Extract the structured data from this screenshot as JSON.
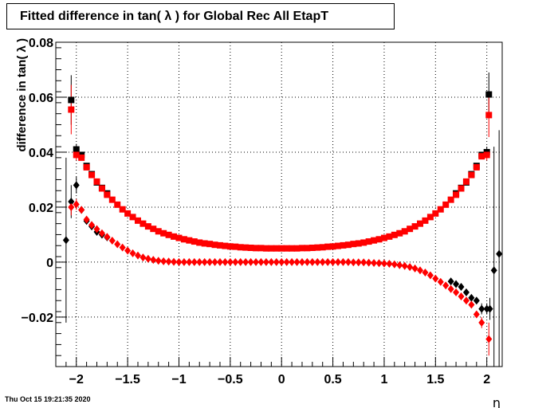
{
  "chart_data": {
    "type": "scatter",
    "title": "Fitted difference in tan( λ ) for Global Rec All EtapT",
    "xlabel": "η",
    "ylabel": "difference in tan( λ )",
    "xlim": [
      -2.2,
      2.15
    ],
    "ylim": [
      -0.038,
      0.08
    ],
    "xticks": [
      -2,
      -1.5,
      -1,
      -0.5,
      0,
      0.5,
      1,
      1.5,
      2
    ],
    "xtick_labels": [
      "−2",
      "−1.5",
      "−1",
      "−0.5",
      "0",
      "0.5",
      "1",
      "1.5",
      "2"
    ],
    "yticks": [
      -0.02,
      0,
      0.02,
      0.04,
      0.06,
      0.08
    ],
    "ytick_labels": [
      "−0.02",
      "0",
      "0.02",
      "0.04",
      "0.06",
      "0.08"
    ],
    "grid": true,
    "series": [
      {
        "marker": "square",
        "color": "#000000",
        "points": [
          [
            -2.05,
            0.059,
            0.009
          ],
          [
            -2.0,
            0.041,
            0.002
          ],
          [
            -1.95,
            0.039,
            0.001
          ],
          [
            -1.9,
            0.035,
            0.001
          ],
          [
            -1.85,
            0.032,
            0.0008
          ],
          [
            -1.8,
            0.029,
            0.0007
          ],
          [
            -1.75,
            0.027,
            0.0006
          ],
          [
            -1.7,
            0.025,
            0.0005
          ],
          [
            1.7,
            0.025,
            0.0005
          ],
          [
            1.75,
            0.027,
            0.0006
          ],
          [
            1.8,
            0.029,
            0.0007
          ],
          [
            1.85,
            0.032,
            0.0008
          ],
          [
            1.9,
            0.035,
            0.001
          ],
          [
            1.95,
            0.039,
            0.001
          ],
          [
            2.0,
            0.04,
            0.002
          ],
          [
            2.02,
            0.061,
            0.008
          ]
        ]
      },
      {
        "marker": "diamond",
        "color": "#000000",
        "points": [
          [
            -2.1,
            0.008,
            0.03
          ],
          [
            -2.05,
            0.022,
            0.006
          ],
          [
            -2.0,
            0.028,
            0.003
          ],
          [
            -1.95,
            0.019,
            0.001
          ],
          [
            -1.9,
            0.015,
            0.001
          ],
          [
            -1.85,
            0.013,
            0.0008
          ],
          [
            -1.8,
            0.011,
            0.0007
          ],
          [
            -1.75,
            0.01,
            0.0006
          ],
          [
            -1.7,
            0.009,
            0.0005
          ],
          [
            1.65,
            -0.007,
            0.0005
          ],
          [
            1.7,
            -0.008,
            0.0006
          ],
          [
            1.75,
            -0.009,
            0.0007
          ],
          [
            1.8,
            -0.011,
            0.0008
          ],
          [
            1.85,
            -0.013,
            0.0009
          ],
          [
            1.9,
            -0.014,
            0.001
          ],
          [
            1.95,
            -0.017,
            0.002
          ],
          [
            2.0,
            -0.017,
            0.002
          ],
          [
            2.03,
            -0.017,
            0.004
          ],
          [
            2.07,
            -0.003,
            0.045
          ],
          [
            2.12,
            0.003,
            0.045
          ]
        ]
      },
      {
        "marker": "square",
        "color": "#ff0000",
        "points": [
          [
            -2.05,
            0.0555,
            0.009
          ],
          [
            -2.0,
            0.039,
            0.002
          ],
          [
            -1.95,
            0.038,
            0.001
          ],
          [
            -1.9,
            0.0345,
            0.001
          ],
          [
            -1.85,
            0.0317,
            0.0008
          ],
          [
            -1.8,
            0.0293,
            0.0007
          ],
          [
            -1.75,
            0.0268,
            0.0006
          ],
          [
            -1.7,
            0.0245,
            0.0005
          ],
          [
            -1.65,
            0.0227,
            0.0004
          ],
          [
            -1.6,
            0.0209,
            0.0004
          ],
          [
            -1.55,
            0.0192,
            0.0003
          ],
          [
            -1.5,
            0.0177,
            0.0003
          ],
          [
            -1.45,
            0.0164,
            0.0003
          ],
          [
            -1.4,
            0.0151,
            0.0003
          ],
          [
            -1.35,
            0.014,
            0.0003
          ],
          [
            -1.3,
            0.013,
            0.0002
          ],
          [
            -1.25,
            0.0121,
            0.0002
          ],
          [
            -1.2,
            0.0112,
            0.0002
          ],
          [
            -1.15,
            0.0105,
            0.0002
          ],
          [
            -1.1,
            0.0099,
            0.0002
          ],
          [
            -1.05,
            0.0093,
            0.0002
          ],
          [
            -1.0,
            0.0088,
            0.0002
          ],
          [
            -0.95,
            0.0083,
            0.0002
          ],
          [
            -0.9,
            0.0079,
            0.0002
          ],
          [
            -0.85,
            0.0075,
            0.0002
          ],
          [
            -0.8,
            0.0071,
            0.0002
          ],
          [
            -0.75,
            0.0068,
            0.0002
          ],
          [
            -0.7,
            0.0066,
            0.0002
          ],
          [
            -0.65,
            0.0063,
            0.0002
          ],
          [
            -0.6,
            0.0061,
            0.0002
          ],
          [
            -0.55,
            0.0059,
            0.0002
          ],
          [
            -0.5,
            0.0057,
            0.0002
          ],
          [
            -0.45,
            0.0056,
            0.0002
          ],
          [
            -0.4,
            0.0054,
            0.0002
          ],
          [
            -0.35,
            0.0053,
            0.0002
          ],
          [
            -0.3,
            0.0052,
            0.0002
          ],
          [
            -0.25,
            0.0051,
            0.0002
          ],
          [
            -0.2,
            0.0051,
            0.0002
          ],
          [
            -0.15,
            0.005,
            0.0002
          ],
          [
            -0.1,
            0.005,
            0.0002
          ],
          [
            -0.05,
            0.005,
            0.0002
          ],
          [
            0.0,
            0.005,
            0.0002
          ],
          [
            0.05,
            0.005,
            0.0002
          ],
          [
            0.1,
            0.005,
            0.0002
          ],
          [
            0.15,
            0.005,
            0.0002
          ],
          [
            0.2,
            0.0051,
            0.0002
          ],
          [
            0.25,
            0.0051,
            0.0002
          ],
          [
            0.3,
            0.0052,
            0.0002
          ],
          [
            0.35,
            0.0053,
            0.0002
          ],
          [
            0.4,
            0.0054,
            0.0002
          ],
          [
            0.45,
            0.0056,
            0.0002
          ],
          [
            0.5,
            0.0057,
            0.0002
          ],
          [
            0.55,
            0.0059,
            0.0002
          ],
          [
            0.6,
            0.0061,
            0.0002
          ],
          [
            0.65,
            0.0063,
            0.0002
          ],
          [
            0.7,
            0.0066,
            0.0002
          ],
          [
            0.75,
            0.0068,
            0.0002
          ],
          [
            0.8,
            0.0071,
            0.0002
          ],
          [
            0.85,
            0.0075,
            0.0002
          ],
          [
            0.9,
            0.0079,
            0.0002
          ],
          [
            0.95,
            0.0083,
            0.0002
          ],
          [
            1.0,
            0.0088,
            0.0002
          ],
          [
            1.05,
            0.0093,
            0.0002
          ],
          [
            1.1,
            0.0099,
            0.0002
          ],
          [
            1.15,
            0.0105,
            0.0002
          ],
          [
            1.2,
            0.0112,
            0.0002
          ],
          [
            1.25,
            0.0121,
            0.0002
          ],
          [
            1.3,
            0.013,
            0.0002
          ],
          [
            1.35,
            0.014,
            0.0003
          ],
          [
            1.4,
            0.0151,
            0.0003
          ],
          [
            1.45,
            0.0164,
            0.0003
          ],
          [
            1.5,
            0.0177,
            0.0003
          ],
          [
            1.55,
            0.0192,
            0.0003
          ],
          [
            1.6,
            0.0209,
            0.0004
          ],
          [
            1.65,
            0.0227,
            0.0004
          ],
          [
            1.7,
            0.0245,
            0.0005
          ],
          [
            1.75,
            0.0268,
            0.0006
          ],
          [
            1.8,
            0.0293,
            0.0007
          ],
          [
            1.85,
            0.0317,
            0.0008
          ],
          [
            1.9,
            0.0345,
            0.001
          ],
          [
            1.95,
            0.0385,
            0.001
          ],
          [
            2.0,
            0.039,
            0.002
          ],
          [
            2.02,
            0.0535,
            0.008
          ]
        ]
      },
      {
        "marker": "diamond",
        "color": "#ff0000",
        "points": [
          [
            -2.05,
            0.02,
            0.003
          ],
          [
            -2.0,
            0.021,
            0.002
          ],
          [
            -1.95,
            0.019,
            0.001
          ],
          [
            -1.9,
            0.0155,
            0.001
          ],
          [
            -1.85,
            0.0135,
            0.0008
          ],
          [
            -1.8,
            0.012,
            0.0007
          ],
          [
            -1.75,
            0.0105,
            0.0006
          ],
          [
            -1.7,
            0.0092,
            0.0005
          ],
          [
            -1.65,
            0.0078,
            0.0004
          ],
          [
            -1.6,
            0.0065,
            0.0004
          ],
          [
            -1.55,
            0.0053,
            0.0003
          ],
          [
            -1.5,
            0.0042,
            0.0003
          ],
          [
            -1.45,
            0.0032,
            0.0003
          ],
          [
            -1.4,
            0.0024,
            0.0003
          ],
          [
            -1.35,
            0.0017,
            0.0002
          ],
          [
            -1.3,
            0.0012,
            0.0002
          ],
          [
            -1.25,
            0.0008,
            0.0002
          ],
          [
            -1.2,
            0.0005,
            0.0002
          ],
          [
            -1.15,
            0.0003,
            0.0002
          ],
          [
            -1.1,
            0.0002,
            0.0002
          ],
          [
            -1.05,
            0.0001,
            0.0002
          ],
          [
            -1.0,
            0.0,
            0.0002
          ],
          [
            -0.95,
            0.0,
            0.0002
          ],
          [
            -0.9,
            0.0,
            0.0002
          ],
          [
            -0.85,
            0.0,
            0.0002
          ],
          [
            -0.8,
            0.0,
            0.0002
          ],
          [
            -0.75,
            0.0,
            0.0002
          ],
          [
            -0.7,
            0.0,
            0.0002
          ],
          [
            -0.65,
            0.0,
            0.0002
          ],
          [
            -0.6,
            0.0,
            0.0002
          ],
          [
            -0.55,
            0.0,
            0.0002
          ],
          [
            -0.5,
            0.0,
            0.0002
          ],
          [
            -0.45,
            0.0,
            0.0002
          ],
          [
            -0.4,
            0.0,
            0.0002
          ],
          [
            -0.35,
            0.0,
            0.0002
          ],
          [
            -0.3,
            0.0,
            0.0002
          ],
          [
            -0.25,
            0.0,
            0.0002
          ],
          [
            -0.2,
            0.0,
            0.0002
          ],
          [
            -0.15,
            0.0,
            0.0002
          ],
          [
            -0.1,
            0.0,
            0.0002
          ],
          [
            -0.05,
            0.0,
            0.0002
          ],
          [
            0.0,
            0.0,
            0.0002
          ],
          [
            0.05,
            0.0,
            0.0002
          ],
          [
            0.1,
            0.0,
            0.0002
          ],
          [
            0.15,
            0.0,
            0.0002
          ],
          [
            0.2,
            0.0,
            0.0002
          ],
          [
            0.25,
            0.0,
            0.0002
          ],
          [
            0.3,
            0.0,
            0.0002
          ],
          [
            0.35,
            0.0,
            0.0002
          ],
          [
            0.4,
            0.0,
            0.0002
          ],
          [
            0.45,
            0.0,
            0.0002
          ],
          [
            0.5,
            0.0,
            0.0002
          ],
          [
            0.55,
            0.0,
            0.0002
          ],
          [
            0.6,
            0.0,
            0.0002
          ],
          [
            0.65,
            0.0,
            0.0002
          ],
          [
            0.7,
            -0.0001,
            0.0002
          ],
          [
            0.75,
            -0.0001,
            0.0002
          ],
          [
            0.8,
            -0.0001,
            0.0002
          ],
          [
            0.85,
            -0.0002,
            0.0002
          ],
          [
            0.9,
            -0.0003,
            0.0002
          ],
          [
            0.95,
            -0.0004,
            0.0002
          ],
          [
            1.0,
            -0.0005,
            0.0002
          ],
          [
            1.05,
            -0.0006,
            0.0002
          ],
          [
            1.1,
            -0.0008,
            0.0002
          ],
          [
            1.15,
            -0.0011,
            0.0002
          ],
          [
            1.2,
            -0.0014,
            0.0002
          ],
          [
            1.25,
            -0.0018,
            0.0002
          ],
          [
            1.3,
            -0.0023,
            0.0002
          ],
          [
            1.35,
            -0.003,
            0.0003
          ],
          [
            1.4,
            -0.0038,
            0.0003
          ],
          [
            1.45,
            -0.0048,
            0.0003
          ],
          [
            1.5,
            -0.006,
            0.0003
          ],
          [
            1.55,
            -0.0072,
            0.0003
          ],
          [
            1.6,
            -0.0085,
            0.0004
          ],
          [
            1.65,
            -0.0098,
            0.0004
          ],
          [
            1.7,
            -0.011,
            0.0005
          ],
          [
            1.75,
            -0.0125,
            0.0006
          ],
          [
            1.8,
            -0.014,
            0.0007
          ],
          [
            1.85,
            -0.0155,
            0.0008
          ],
          [
            1.9,
            -0.019,
            0.001
          ],
          [
            1.95,
            -0.022,
            0.002
          ],
          [
            2.02,
            -0.028,
            0.006
          ]
        ]
      }
    ]
  },
  "footer": {
    "stamp": "Thu Oct 15 19:21:35 2020"
  }
}
